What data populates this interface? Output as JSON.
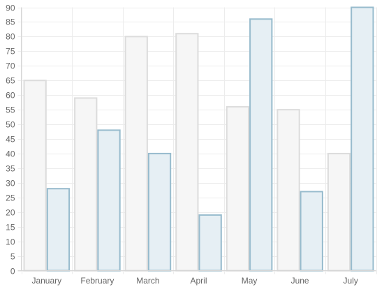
{
  "chart_data": {
    "type": "bar",
    "title": "",
    "xlabel": "",
    "ylabel": "",
    "categories": [
      "January",
      "February",
      "March",
      "April",
      "May",
      "June",
      "July"
    ],
    "ylim": [
      0,
      90
    ],
    "ytick_step": 5,
    "grid": true,
    "legend": "none",
    "series": [
      {
        "values": [
          65,
          59,
          80,
          81,
          56,
          55,
          40
        ],
        "fill": "#f6f6f6",
        "stroke": "#dcdcdc"
      },
      {
        "values": [
          28,
          48,
          40,
          19,
          86,
          27,
          90
        ],
        "fill": "#e6eff4",
        "stroke": "#97bbcd"
      }
    ]
  }
}
